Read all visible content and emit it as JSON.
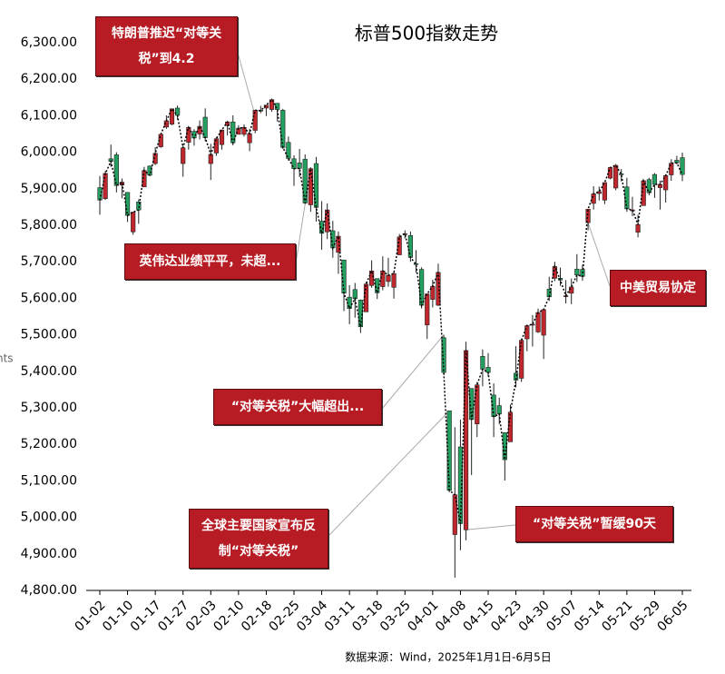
{
  "chart_data": {
    "type": "candlestick",
    "title": "标普500指数走势",
    "y_label": "nts",
    "source": "数据来源：Wind，2025年1月1日-6月5日",
    "up_color": "#c0272d",
    "down_color": "#23a05f",
    "line_color": "#000000",
    "ylim": [
      4800,
      6300
    ],
    "yticks": [
      {
        "value": 4800,
        "label": "4,800.00"
      },
      {
        "value": 4900,
        "label": "4,900.00"
      },
      {
        "value": 5000,
        "label": "5,000.00"
      },
      {
        "value": 5100,
        "label": "5,100.00"
      },
      {
        "value": 5200,
        "label": "5,200.00"
      },
      {
        "value": 5300,
        "label": "5,300.00"
      },
      {
        "value": 5400,
        "label": "5,400.00"
      },
      {
        "value": 5500,
        "label": "5,500.00"
      },
      {
        "value": 5600,
        "label": "5,600.00"
      },
      {
        "value": 5700,
        "label": "5,700.00"
      },
      {
        "value": 5800,
        "label": "5,800.00"
      },
      {
        "value": 5900,
        "label": "5,900.00"
      },
      {
        "value": 6000,
        "label": "6,000.00"
      },
      {
        "value": 6100,
        "label": "6,100.00"
      },
      {
        "value": 6200,
        "label": "6,200.00"
      },
      {
        "value": 6300,
        "label": "6,300.00"
      }
    ],
    "categories": [
      "01-02",
      null,
      null,
      null,
      null,
      "01-10",
      null,
      null,
      null,
      null,
      "01-17",
      null,
      null,
      null,
      null,
      "01-27",
      null,
      null,
      null,
      null,
      "02-03",
      null,
      null,
      null,
      null,
      "02-10",
      null,
      null,
      null,
      null,
      "02-18",
      null,
      null,
      null,
      null,
      "02-25",
      null,
      null,
      null,
      null,
      "03-04",
      null,
      null,
      null,
      null,
      "03-11",
      null,
      null,
      null,
      null,
      "03-18",
      null,
      null,
      null,
      null,
      "03-25",
      null,
      null,
      null,
      null,
      "04-01",
      null,
      null,
      null,
      null,
      "04-08",
      null,
      null,
      null,
      null,
      "04-15",
      null,
      null,
      null,
      null,
      "04-23",
      null,
      null,
      null,
      null,
      "04-30",
      null,
      null,
      null,
      null,
      "05-07",
      null,
      null,
      null,
      null,
      "05-14",
      null,
      null,
      null,
      null,
      "05-21",
      null,
      null,
      null,
      null,
      "05-29",
      null,
      null,
      null,
      null,
      "06-05"
    ],
    "open": [
      5903,
      5873,
      5982,
      5993,
      5910,
      5890,
      5782,
      5864,
      5905,
      5962,
      5969,
      6015,
      6069,
      6077,
      6121,
      5969,
      6027,
      6057,
      6050,
      6096,
      5969,
      5998,
      6021,
      6073,
      6083,
      6049,
      6049,
      6026,
      6060,
      6115,
      6121,
      6117,
      6134,
      6115,
      6027,
      5982,
      5971,
      5981,
      5856,
      5969,
      5811,
      5782,
      5785,
      5726,
      5705,
      5603,
      5624,
      5595,
      5563,
      5635,
      5654,
      5632,
      5646,
      5630,
      5719,
      5776,
      5772,
      5695,
      5679,
      5527,
      5597,
      5581,
      5492,
      5292,
      4953,
      5193,
      4966,
      5353,
      5256,
      5441,
      5411,
      5335,
      5306,
      5232,
      5207,
      5395,
      5381,
      5489,
      5529,
      5508,
      5499,
      5625,
      5655,
      5655,
      5607,
      5614,
      5680,
      5679,
      5807,
      5860,
      5887,
      5869,
      5929,
      5902,
      5941,
      5905,
      5842,
      5781,
      5854,
      5925,
      5939,
      5903,
      5897,
      5938,
      5978,
      5985
    ],
    "high": [
      5935,
      5949,
      6021,
      6000,
      5928,
      5890,
      5837,
      5871,
      5960,
      5964,
      6014,
      6052,
      6101,
      6119,
      6128,
      6018,
      6071,
      6063,
      6087,
      6120,
      6023,
      6042,
      6062,
      6084,
      6101,
      6074,
      6076,
      6064,
      6116,
      6127,
      6129,
      6147,
      6134,
      6119,
      6043,
      5992,
      6009,
      5994,
      5959,
      5987,
      5866,
      5860,
      5812,
      5783,
      5705,
      5636,
      5642,
      5597,
      5645,
      5704,
      5654,
      5715,
      5711,
      5672,
      5776,
      5786,
      5783,
      5732,
      5685,
      5613,
      5651,
      5695,
      5500,
      5292,
      5247,
      5268,
      5481,
      5353,
      5371,
      5460,
      5450,
      5367,
      5328,
      5233,
      5309,
      5469,
      5490,
      5528,
      5554,
      5572,
      5572,
      5659,
      5700,
      5684,
      5650,
      5654,
      5721,
      5692,
      5845,
      5907,
      5906,
      5917,
      5959,
      5968,
      5954,
      5930,
      5878,
      5829,
      5924,
      5930,
      5943,
      5922,
      5940,
      5981,
      5990,
      5999
    ],
    "low": [
      5829,
      5869,
      5960,
      5890,
      5874,
      5809,
      5774,
      5804,
      5905,
      5937,
      5965,
      6012,
      6064,
      6074,
      6089,
      5933,
      6007,
      6018,
      6035,
      6030,
      5924,
      5990,
      6007,
      6046,
      6019,
      6049,
      6043,
      6003,
      6052,
      6107,
      6099,
      6111,
      6084,
      6009,
      5977,
      5908,
      5932,
      5858,
      5837,
      5810,
      5733,
      5762,
      5711,
      5667,
      5565,
      5529,
      5547,
      5505,
      5563,
      5629,
      5598,
      5622,
      5632,
      5599,
      5719,
      5764,
      5700,
      5670,
      5572,
      5489,
      5575,
      5579,
      5390,
      5069,
      4835,
      4910,
      4937,
      5116,
      5220,
      5359,
      5387,
      5220,
      5255,
      5101,
      5207,
      5356,
      5371,
      5455,
      5468,
      5505,
      5434,
      5593,
      5647,
      5634,
      5586,
      5584,
      5645,
      5648,
      5786,
      5843,
      5868,
      5858,
      5926,
      5896,
      5920,
      5837,
      5825,
      5767,
      5854,
      5882,
      5875,
      5843,
      5862,
      5922,
      5967,
      5921
    ],
    "close": [
      5869,
      5942,
      5975,
      5909,
      5918,
      5827,
      5836,
      5842,
      5950,
      5937,
      5997,
      6049,
      6086,
      6119,
      6101,
      6012,
      6068,
      6039,
      6071,
      6040,
      5994,
      6037,
      6061,
      6083,
      6026,
      6066,
      6068,
      6051,
      6115,
      6114,
      6129,
      6144,
      6117,
      6013,
      5983,
      5955,
      5956,
      5861,
      5955,
      5849,
      5778,
      5842,
      5738,
      5770,
      5614,
      5572,
      5599,
      5522,
      5639,
      5675,
      5615,
      5675,
      5663,
      5668,
      5768,
      5777,
      5712,
      5693,
      5581,
      5612,
      5633,
      5671,
      5397,
      5074,
      5062,
      4983,
      5457,
      5268,
      5363,
      5406,
      5397,
      5276,
      5283,
      5158,
      5288,
      5376,
      5485,
      5525,
      5529,
      5561,
      5569,
      5604,
      5687,
      5650,
      5607,
      5631,
      5664,
      5660,
      5844,
      5886,
      5892,
      5917,
      5958,
      5964,
      5940,
      5845,
      5842,
      5802,
      5922,
      5889,
      5912,
      5912,
      5936,
      5970,
      5971,
      5939
    ],
    "annotations": [
      "特朗普推迟“对等关税”到4.2",
      "英伟达业绩平平，未超...",
      "“对等关税”大幅超出...",
      "全球主要国家宣布反制“对等关税”",
      "“对等关税”暂缓90天",
      "中美贸易协定"
    ]
  }
}
